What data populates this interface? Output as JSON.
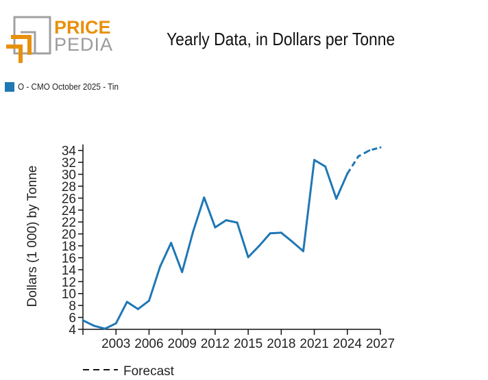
{
  "logo": {
    "line1": "PRICE",
    "line2": "PEDIA"
  },
  "title": "Yearly Data, in Dollars per Tonne",
  "legend": {
    "label": "O - CMO October 2025 - Tin",
    "color": "#1f77b4"
  },
  "forecast_legend": {
    "label": "Forecast"
  },
  "chart_data": {
    "type": "line",
    "title": "Yearly Data, in Dollars per Tonne",
    "xlabel": "",
    "ylabel": "Dollars (1 000) by Tonne",
    "xlim": [
      2000,
      2027
    ],
    "ylim": [
      4,
      35
    ],
    "xticks": [
      2003,
      2006,
      2009,
      2012,
      2015,
      2018,
      2021,
      2024,
      2027
    ],
    "yticks": [
      4,
      6,
      8,
      10,
      12,
      14,
      16,
      18,
      20,
      22,
      24,
      26,
      28,
      30,
      32,
      34
    ],
    "grid": false,
    "series": [
      {
        "name": "O - CMO October 2025 - Tin",
        "color": "#1f77b4",
        "x": [
          2000,
          2001,
          2002,
          2003,
          2004,
          2005,
          2006,
          2007,
          2008,
          2009,
          2010,
          2011,
          2012,
          2013,
          2014,
          2015,
          2016,
          2017,
          2018,
          2019,
          2020,
          2021,
          2022,
          2023,
          2024
        ],
        "y": [
          5.5,
          4.6,
          4.1,
          5.0,
          8.6,
          7.4,
          8.8,
          14.5,
          18.5,
          13.6,
          20.4,
          26.1,
          21.1,
          22.3,
          21.9,
          16.1,
          18.0,
          20.1,
          20.2,
          18.7,
          17.1,
          32.4,
          31.3,
          25.9,
          30.1
        ]
      },
      {
        "name": "Forecast",
        "color": "#1f77b4",
        "dashed": true,
        "x": [
          2024,
          2025,
          2026,
          2027
        ],
        "y": [
          30.1,
          33.0,
          34.0,
          34.5
        ]
      }
    ]
  }
}
